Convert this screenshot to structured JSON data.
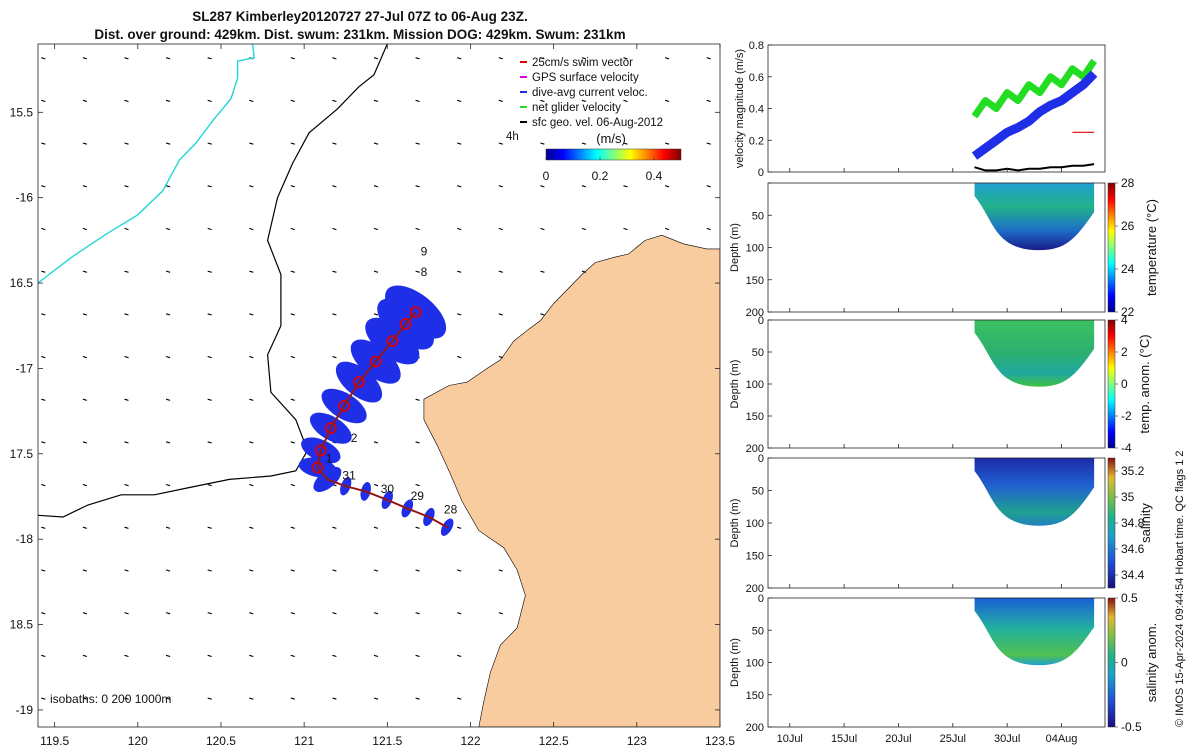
{
  "title_line1": "SL287 Kimberley20120727 27-Jul 07Z to 06-Aug 23Z.",
  "title_line2": "Dist. over ground: 429km. Dist. swum: 231km. Mission DOG: 429km. Swum: 231km",
  "isobaths_label": "isobaths: 0   200  1000m",
  "footer": "© IMOS 15-Apr-2024 09:44:54 Hobart time. QC flags 1  2",
  "colors": {
    "land": "#f8cc9e",
    "swim_vector": "#e00000",
    "gps_velocity": "#e000e0",
    "dive_current": "#1f2fe8",
    "net_velocity": "#22dd22",
    "sfc_geo": "#000000",
    "isobath_200": "#000000",
    "isobath_1000": "#22d6d6"
  },
  "chart_data": [
    {
      "type": "map",
      "xlim": [
        119.4,
        123.5
      ],
      "ylim": [
        -19.1,
        -15.1
      ],
      "xticks": [
        119.5,
        120,
        120.5,
        121,
        121.5,
        122,
        122.5,
        123,
        123.5
      ],
      "xtick_labels": [
        "119.5",
        "120",
        "120.5",
        "121",
        "121.5",
        "122",
        "122.5",
        "123",
        "123.5"
      ],
      "yticks": [
        -15.5,
        -16,
        -16.5,
        -17,
        -17.5,
        -18,
        -18.5,
        -19
      ],
      "ytick_labels": [
        "15.5",
        "-16",
        "16.5",
        "-17",
        "17.5",
        "-18",
        "18.5",
        "-19"
      ],
      "legend": {
        "position": "top-right",
        "entries": [
          {
            "label": "25cm/s swim vector",
            "color": "#e00000"
          },
          {
            "label": "GPS surface velocity",
            "color": "#e000e0"
          },
          {
            "label": "dive-avg current veloc.",
            "color": "#1f2fe8"
          },
          {
            "label": "net glider velocity",
            "color": "#22dd22"
          },
          {
            "label": "sfc geo. vel. 06-Aug-2012",
            "color": "#000000"
          }
        ],
        "time_label": "4h"
      },
      "colorbar": {
        "label": "(m/s)",
        "ticks": [
          0,
          0.2,
          0.4
        ],
        "tick_labels": [
          "0",
          "0.2",
          "0.4"
        ],
        "range": [
          0,
          0.5
        ]
      },
      "track": [
        {
          "lon": 121.86,
          "lat": -17.93
        },
        {
          "lon": 121.75,
          "lat": -17.87
        },
        {
          "lon": 121.62,
          "lat": -17.82
        },
        {
          "lon": 121.5,
          "lat": -17.77
        },
        {
          "lon": 121.37,
          "lat": -17.72
        },
        {
          "lon": 121.25,
          "lat": -17.69
        },
        {
          "lon": 121.14,
          "lat": -17.65
        },
        {
          "lon": 121.08,
          "lat": -17.58
        },
        {
          "lon": 121.1,
          "lat": -17.48
        },
        {
          "lon": 121.16,
          "lat": -17.35
        },
        {
          "lon": 121.24,
          "lat": -17.22
        },
        {
          "lon": 121.33,
          "lat": -17.08
        },
        {
          "lon": 121.43,
          "lat": -16.96
        },
        {
          "lon": 121.53,
          "lat": -16.84
        },
        {
          "lon": 121.61,
          "lat": -16.74
        },
        {
          "lon": 121.67,
          "lat": -16.67
        }
      ],
      "track_labels": [
        {
          "text": "28",
          "lon": 121.84,
          "lat": -17.85
        },
        {
          "text": "29",
          "lon": 121.64,
          "lat": -17.77
        },
        {
          "text": "30",
          "lon": 121.46,
          "lat": -17.73
        },
        {
          "text": "31",
          "lon": 121.23,
          "lat": -17.65
        },
        {
          "text": "1",
          "lon": 121.13,
          "lat": -17.55
        },
        {
          "text": "2",
          "lon": 121.28,
          "lat": -17.43
        },
        {
          "text": "8",
          "lon": 121.7,
          "lat": -16.46
        },
        {
          "text": "9",
          "lon": 121.7,
          "lat": -16.34
        }
      ],
      "isobath_200": [
        [
          119.4,
          -17.86
        ],
        [
          119.55,
          -17.87
        ],
        [
          119.7,
          -17.8
        ],
        [
          119.9,
          -17.74
        ],
        [
          120.1,
          -17.74
        ],
        [
          120.3,
          -17.7
        ],
        [
          120.55,
          -17.65
        ],
        [
          120.8,
          -17.63
        ],
        [
          120.95,
          -17.6
        ],
        [
          121.02,
          -17.48
        ],
        [
          120.95,
          -17.3
        ],
        [
          120.8,
          -17.14
        ],
        [
          120.78,
          -16.92
        ],
        [
          120.86,
          -16.75
        ],
        [
          120.86,
          -16.45
        ],
        [
          120.78,
          -16.25
        ],
        [
          120.84,
          -16.0
        ],
        [
          120.93,
          -15.8
        ],
        [
          121.03,
          -15.62
        ],
        [
          121.2,
          -15.48
        ],
        [
          121.33,
          -15.35
        ],
        [
          121.42,
          -15.28
        ],
        [
          121.5,
          -15.1
        ]
      ],
      "isobath_1000": [
        [
          119.4,
          -16.5
        ],
        [
          119.6,
          -16.35
        ],
        [
          119.8,
          -16.22
        ],
        [
          120.0,
          -16.1
        ],
        [
          120.15,
          -15.96
        ],
        [
          120.25,
          -15.78
        ],
        [
          120.35,
          -15.68
        ],
        [
          120.45,
          -15.55
        ],
        [
          120.56,
          -15.42
        ],
        [
          120.6,
          -15.3
        ],
        [
          120.6,
          -15.2
        ],
        [
          120.7,
          -15.18
        ],
        [
          120.69,
          -15.1
        ]
      ],
      "land": [
        [
          122.05,
          -19.1
        ],
        [
          122.08,
          -18.95
        ],
        [
          122.12,
          -18.78
        ],
        [
          122.18,
          -18.62
        ],
        [
          122.28,
          -18.52
        ],
        [
          122.33,
          -18.33
        ],
        [
          122.28,
          -18.18
        ],
        [
          122.2,
          -18.05
        ],
        [
          122.05,
          -17.95
        ],
        [
          121.95,
          -17.78
        ],
        [
          121.88,
          -17.62
        ],
        [
          121.8,
          -17.45
        ],
        [
          121.72,
          -17.3
        ],
        [
          121.72,
          -17.18
        ],
        [
          121.87,
          -17.1
        ],
        [
          121.98,
          -17.08
        ],
        [
          122.1,
          -17.0
        ],
        [
          122.18,
          -16.95
        ],
        [
          122.26,
          -16.84
        ],
        [
          122.35,
          -16.77
        ],
        [
          122.42,
          -16.72
        ],
        [
          122.5,
          -16.62
        ],
        [
          122.6,
          -16.52
        ],
        [
          122.67,
          -16.45
        ],
        [
          122.75,
          -16.38
        ],
        [
          122.86,
          -16.35
        ],
        [
          122.95,
          -16.33
        ],
        [
          123.05,
          -16.25
        ],
        [
          123.15,
          -16.22
        ],
        [
          123.28,
          -16.27
        ],
        [
          123.42,
          -16.3
        ],
        [
          123.5,
          -16.3
        ],
        [
          123.5,
          -19.1
        ]
      ]
    },
    {
      "type": "line",
      "ylabel": "velocity magnitude (m/s)",
      "ylim": [
        0,
        0.8
      ],
      "yticks": [
        0,
        0.2,
        0.4,
        0.6,
        0.8
      ],
      "ytick_labels": [
        "0",
        "0.2",
        "0.4",
        "0.6",
        "0.8"
      ],
      "xlim_days": [
        "2012-07-08",
        "2012-08-08"
      ],
      "series": [
        {
          "color": "#22dd22",
          "x": [
            "2012-07-27",
            "2012-07-28",
            "2012-07-29",
            "2012-07-30",
            "2012-07-31",
            "2012-08-01",
            "2012-08-02",
            "2012-08-03",
            "2012-08-04",
            "2012-08-05",
            "2012-08-06",
            "2012-08-07"
          ],
          "y": [
            0.35,
            0.45,
            0.4,
            0.5,
            0.45,
            0.55,
            0.5,
            0.6,
            0.55,
            0.65,
            0.6,
            0.7
          ]
        },
        {
          "color": "#1f2fe8",
          "x": [
            "2012-07-27",
            "2012-07-28",
            "2012-07-29",
            "2012-07-30",
            "2012-07-31",
            "2012-08-01",
            "2012-08-02",
            "2012-08-03",
            "2012-08-04",
            "2012-08-05",
            "2012-08-06",
            "2012-08-07"
          ],
          "y": [
            0.1,
            0.15,
            0.2,
            0.25,
            0.28,
            0.32,
            0.38,
            0.42,
            0.45,
            0.5,
            0.55,
            0.62
          ]
        },
        {
          "color": "#000000",
          "x": [
            "2012-07-27",
            "2012-07-28",
            "2012-07-29",
            "2012-07-30",
            "2012-07-31",
            "2012-08-01",
            "2012-08-02",
            "2012-08-03",
            "2012-08-04",
            "2012-08-05",
            "2012-08-06",
            "2012-08-07"
          ],
          "y": [
            0.03,
            0.01,
            0.01,
            0.02,
            0.01,
            0.02,
            0.02,
            0.03,
            0.03,
            0.04,
            0.04,
            0.05
          ]
        },
        {
          "color": "#e00000",
          "x": [
            "2012-08-05",
            "2012-08-06",
            "2012-08-07"
          ],
          "y": [
            0.25,
            0.25,
            0.25
          ]
        }
      ]
    },
    {
      "type": "heatmap",
      "ylabel": "Depth (m)",
      "ylim": [
        200,
        0
      ],
      "yticks": [
        0,
        50,
        100,
        150,
        200
      ],
      "ytick_labels": [
        "",
        "50",
        "100",
        "150",
        "200"
      ],
      "colorbar_label": "temperature (°C)",
      "colorbar_ticks": [
        "28",
        "26",
        "24",
        "22"
      ],
      "range": [
        22,
        28
      ]
    },
    {
      "type": "heatmap",
      "ylabel": "Depth (m)",
      "ylim": [
        200,
        0
      ],
      "yticks": [
        0,
        50,
        100,
        150,
        200
      ],
      "ytick_labels": [
        "0",
        "50",
        "100",
        "150",
        "200"
      ],
      "colorbar_label": "temp. anom. (°C)",
      "colorbar_ticks": [
        "4",
        "2",
        "0",
        "-2",
        "-4"
      ],
      "range": [
        -4,
        4
      ]
    },
    {
      "type": "heatmap",
      "ylabel": "Depth (m)",
      "ylim": [
        200,
        0
      ],
      "yticks": [
        0,
        50,
        100,
        150,
        200
      ],
      "ytick_labels": [
        "0",
        "50",
        "100",
        "150",
        "200"
      ],
      "colorbar_label": "salinity",
      "colorbar_ticks": [
        "35.2",
        "35",
        "34.8",
        "34.6",
        "34.4"
      ],
      "range": [
        34.3,
        35.3
      ]
    },
    {
      "type": "heatmap",
      "ylabel": "Depth (m)",
      "ylim": [
        200,
        0
      ],
      "yticks": [
        0,
        50,
        100,
        150,
        200
      ],
      "ytick_labels": [
        "0",
        "50",
        "100",
        "150",
        "200"
      ],
      "colorbar_label": "salinity anom.",
      "colorbar_ticks": [
        "0.5",
        "0",
        "-0.5"
      ],
      "range": [
        -0.5,
        0.5
      ],
      "xticks": [
        "2012-07-10",
        "2012-07-15",
        "2012-07-20",
        "2012-07-25",
        "2012-07-30",
        "2012-08-04"
      ],
      "xtick_labels": [
        "10Jul",
        "15Jul",
        "20Jul",
        "25Jul",
        "30Jul",
        "04Aug"
      ]
    }
  ]
}
